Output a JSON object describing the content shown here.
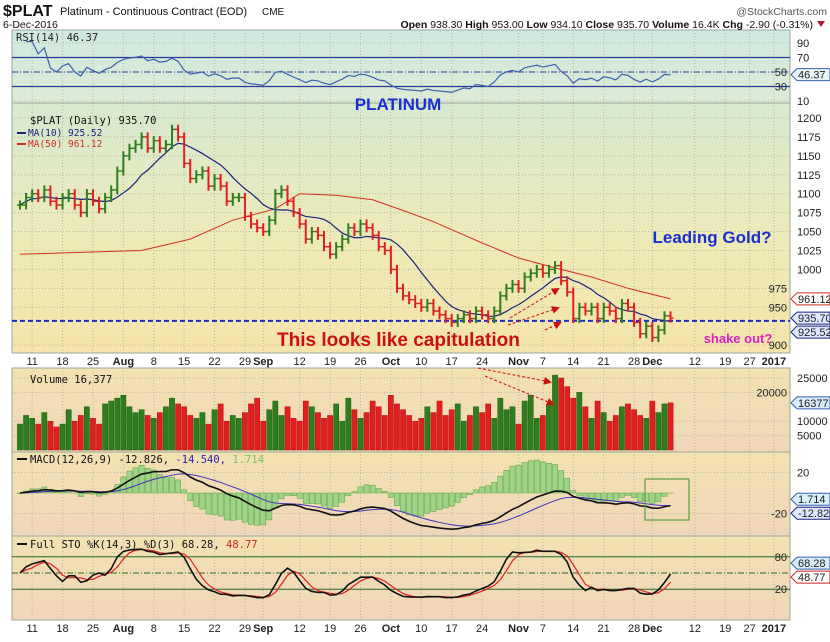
{
  "header": {
    "symbol": "$PLAT",
    "name": "Platinum - Continuous Contract (EOD)",
    "exchange": "CME",
    "date": "6-Dec-2016",
    "copyright": "@StockCharts.com",
    "open_label": "Open",
    "open": "938.30",
    "high_label": "High",
    "high": "953.00",
    "low_label": "Low",
    "low": "934.10",
    "close_label": "Close",
    "close": "935.70",
    "volume_label": "Volume",
    "volume": "16.4K",
    "chg_label": "Chg",
    "chg": "-2.90 (-0.31%)",
    "chg_icon": "down-triangle-icon"
  },
  "colors": {
    "up": "#2e7d1e",
    "down": "#e02020",
    "ma10": "#1a237e",
    "ma50": "#d03020",
    "rsi": "#3a5fb0",
    "annotation_blue": "#1a2fd0",
    "annotation_red": "#cc1010",
    "annotation_magenta": "#e020c0"
  },
  "annotations": {
    "platinum": "PLATINUM",
    "leading_gold": "Leading Gold?",
    "shake_out": "shake out?",
    "capitulation": "This looks like capitulation"
  },
  "chart_data": [
    {
      "panel": "rsi",
      "type": "line",
      "legend": "RSI(14) 46.37",
      "last_tag": "46.37",
      "yticks": [
        90,
        70,
        50,
        30,
        10
      ],
      "ylim": [
        0,
        100
      ],
      "levels": [
        70,
        30
      ]
    },
    {
      "panel": "price",
      "type": "ohlc",
      "legend": "$PLAT (Daily) 935.70",
      "ma10_legend": "MA(10) 925.52",
      "ma50_legend": "MA(50) 961.12",
      "tags": {
        "ma50": "961.12",
        "close": "935.70",
        "ma10": "925.52"
      },
      "support_line": 932,
      "yticks": [
        1200,
        1175,
        1150,
        1125,
        1100,
        1075,
        1050,
        1025,
        1000,
        975,
        950,
        900
      ],
      "ylim": [
        880,
        1220
      ],
      "closes": [
        1085,
        1095,
        1100,
        1095,
        1105,
        1090,
        1085,
        1095,
        1100,
        1085,
        1075,
        1100,
        1090,
        1080,
        1095,
        1105,
        1130,
        1150,
        1160,
        1165,
        1175,
        1160,
        1170,
        1160,
        1165,
        1185,
        1175,
        1140,
        1120,
        1125,
        1130,
        1110,
        1120,
        1110,
        1090,
        1095,
        1095,
        1070,
        1060,
        1055,
        1050,
        1065,
        1100,
        1105,
        1090,
        1075,
        1060,
        1040,
        1050,
        1045,
        1030,
        1020,
        1030,
        1040,
        1055,
        1050,
        1060,
        1055,
        1045,
        1030,
        1025,
        1000,
        975,
        965,
        960,
        955,
        950,
        955,
        945,
        940,
        935,
        930,
        935,
        940,
        935,
        945,
        940,
        935,
        945,
        965,
        975,
        980,
        975,
        990,
        995,
        1000,
        995,
        1000,
        1005,
        985,
        970,
        935,
        950,
        945,
        950,
        935,
        950,
        945,
        935,
        955,
        950,
        930,
        915,
        925,
        910,
        920,
        938.6,
        935.7
      ],
      "ma50": [
        [
          0,
          1020
        ],
        [
          20,
          1025
        ],
        [
          28,
          1040
        ],
        [
          35,
          1065
        ],
        [
          42,
          1080
        ],
        [
          46,
          1100
        ],
        [
          52,
          1098
        ],
        [
          58,
          1092
        ],
        [
          64,
          1075
        ],
        [
          68,
          1063
        ],
        [
          76,
          1035
        ],
        [
          82,
          1015
        ],
        [
          88,
          1002
        ],
        [
          94,
          990
        ],
        [
          100,
          975
        ],
        [
          107,
          961.12
        ]
      ]
    },
    {
      "panel": "volume",
      "type": "bar",
      "legend": "Volume 16,377",
      "last_tag": "16377",
      "yticks": [
        25000,
        20000,
        10000,
        5000
      ],
      "values": [
        9000,
        12000,
        11000,
        9000,
        13000,
        10000,
        8000,
        9000,
        14000,
        10000,
        12000,
        15000,
        11000,
        9000,
        16000,
        17000,
        18000,
        19000,
        15000,
        13000,
        14000,
        12000,
        11000,
        13000,
        15000,
        18000,
        16000,
        15000,
        12000,
        11000,
        13000,
        9000,
        14000,
        16000,
        10000,
        12000,
        11000,
        13000,
        16000,
        18000,
        10000,
        14000,
        17000,
        12000,
        15000,
        11000,
        10000,
        17000,
        15000,
        13000,
        11000,
        12000,
        16000,
        10000,
        18000,
        14000,
        11000,
        13000,
        17000,
        15000,
        12000,
        19000,
        16000,
        14000,
        12000,
        10000,
        11000,
        15000,
        13000,
        17000,
        12000,
        14000,
        16000,
        10000,
        12000,
        15000,
        13000,
        16000,
        11000,
        18000,
        14000,
        15000,
        9000,
        17000,
        19000,
        11000,
        12000,
        16000,
        26000,
        25000,
        22000,
        18000,
        20000,
        15000,
        11000,
        17000,
        13000,
        10000,
        12000,
        15000,
        16000,
        14000,
        12000,
        11000,
        17000,
        13000,
        16000,
        16377
      ]
    },
    {
      "panel": "macd",
      "type": "line",
      "legend_name": "MACD(12,26,9)",
      "macd": "-12.826,",
      "signal": "-14.540,",
      "hist": "1.714",
      "tags": {
        "hist": "1.714",
        "macd": "-12.826"
      },
      "yticks": [
        20,
        -20
      ]
    },
    {
      "panel": "sto",
      "type": "line",
      "legend_name": "Full STO %K(14,3) %D(3)",
      "k": "68.28,",
      "d": "48.77",
      "tags": {
        "k": "68.28",
        "d": "48.77"
      },
      "yticks": [
        80,
        20
      ],
      "levels": [
        80,
        50,
        20
      ]
    }
  ],
  "x_axis": {
    "ticks": [
      {
        "i": 2,
        "label": "11"
      },
      {
        "i": 7,
        "label": "18"
      },
      {
        "i": 12,
        "label": "25"
      },
      {
        "i": 17,
        "label": "Aug",
        "bold": true
      },
      {
        "i": 22,
        "label": "8"
      },
      {
        "i": 27,
        "label": "15"
      },
      {
        "i": 32,
        "label": "22"
      },
      {
        "i": 37,
        "label": "29"
      },
      {
        "i": 40,
        "label": "Sep",
        "bold": true
      },
      {
        "i": 46,
        "label": "12"
      },
      {
        "i": 51,
        "label": "19"
      },
      {
        "i": 56,
        "label": "26"
      },
      {
        "i": 61,
        "label": "Oct",
        "bold": true
      },
      {
        "i": 66,
        "label": "10"
      },
      {
        "i": 71,
        "label": "17"
      },
      {
        "i": 76,
        "label": "24"
      },
      {
        "i": 82,
        "label": "Nov",
        "bold": true
      },
      {
        "i": 86,
        "label": "7"
      },
      {
        "i": 91,
        "label": "14"
      },
      {
        "i": 96,
        "label": "21"
      },
      {
        "i": 101,
        "label": "28"
      },
      {
        "i": 104,
        "label": "Dec",
        "bold": true
      },
      {
        "i": 111,
        "label": "12"
      },
      {
        "i": 116,
        "label": "19"
      },
      {
        "i": 120,
        "label": "27"
      },
      {
        "i": 124,
        "label": "2017",
        "bold": true
      }
    ]
  }
}
